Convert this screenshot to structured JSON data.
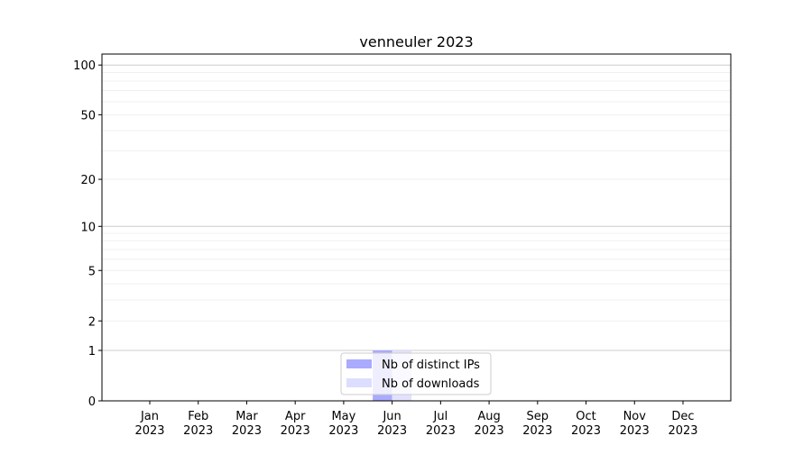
{
  "chart_data": {
    "type": "bar",
    "title": "venneuler 2023",
    "xlabel": "",
    "ylabel": "",
    "y_scale": "symlog",
    "ylim": [
      0,
      116
    ],
    "y_ticks": [
      0,
      1,
      2,
      5,
      10,
      20,
      50,
      100
    ],
    "grid": true,
    "legend_placement": "lower-center",
    "categories": [
      "Jan\n2023",
      "Feb\n2023",
      "Mar\n2023",
      "Apr\n2023",
      "May\n2023",
      "Jun\n2023",
      "Jul\n2023",
      "Aug\n2023",
      "Sep\n2023",
      "Oct\n2023",
      "Nov\n2023",
      "Dec\n2023"
    ],
    "series": [
      {
        "name": "Nb of distinct IPs",
        "color": "#aaaaff",
        "values": [
          0,
          0,
          0,
          0,
          0,
          1,
          0,
          0,
          0,
          0,
          0,
          0
        ]
      },
      {
        "name": "Nb of downloads",
        "color": "#ddddff",
        "values": [
          0,
          0,
          0,
          0,
          0,
          1,
          0,
          0,
          0,
          0,
          0,
          0
        ]
      }
    ]
  }
}
